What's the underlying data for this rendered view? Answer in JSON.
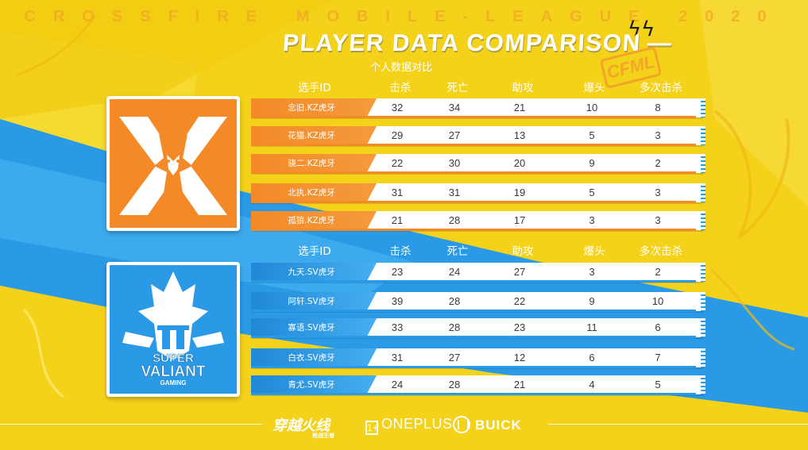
{
  "league_title": "CROSSFIRE MOBILE-LEAGUE 2020",
  "main_title": "PLAYER DATA COMPARISON",
  "main_title_dash": "—",
  "subtitle": "个人数据对比",
  "badge": "CFML",
  "colors": {
    "kz": "#f38a27",
    "sv": "#2a9ae6",
    "background": "#f5d21a"
  },
  "headers": {
    "id": "选手ID",
    "kills": "击杀",
    "deaths": "死亡",
    "assists": "助攻",
    "headshots": "爆头",
    "multikills": "多次击杀"
  },
  "teams": [
    {
      "logo_icon": "kz-dragon-logo",
      "players": [
        {
          "name": "念旧.KZ虎牙",
          "kills": "32",
          "deaths": "34",
          "assists": "21",
          "headshots": "10",
          "multikills": "8"
        },
        {
          "name": "花猫.KZ虎牙",
          "kills": "29",
          "deaths": "27",
          "assists": "13",
          "headshots": "5",
          "multikills": "3"
        },
        {
          "name": "骁二.KZ虎牙",
          "kills": "22",
          "deaths": "30",
          "assists": "20",
          "headshots": "9",
          "multikills": "2"
        },
        {
          "name": "北执.KZ虎牙",
          "kills": "31",
          "deaths": "31",
          "assists": "19",
          "headshots": "5",
          "multikills": "3"
        },
        {
          "name": "孤狼.KZ虎牙",
          "kills": "21",
          "deaths": "28",
          "assists": "17",
          "headshots": "3",
          "multikills": "3"
        }
      ]
    },
    {
      "logo_icon": "super-valiant-gaming-logo",
      "logo_text": {
        "line1": "SUPER",
        "line2": "VALIANT",
        "line3": "GAMING"
      },
      "players": [
        {
          "name": "九天.SV虎牙",
          "kills": "23",
          "deaths": "24",
          "assists": "27",
          "headshots": "3",
          "multikills": "2"
        },
        {
          "name": "阿轩.SV虎牙",
          "kills": "39",
          "deaths": "28",
          "assists": "22",
          "headshots": "9",
          "multikills": "10"
        },
        {
          "name": "寡语.SV虎牙",
          "kills": "33",
          "deaths": "28",
          "assists": "23",
          "headshots": "11",
          "multikills": "6"
        },
        {
          "name": "白衣.SV虎牙",
          "kills": "31",
          "deaths": "27",
          "assists": "12",
          "headshots": "6",
          "multikills": "7"
        },
        {
          "name": "青尤.SV虎牙",
          "kills": "24",
          "deaths": "28",
          "assists": "21",
          "headshots": "4",
          "multikills": "5"
        }
      ]
    }
  ],
  "sponsors": {
    "cf_logo": "穿越火线",
    "cf_sub": "枪战王者",
    "oneplus": "ONEPLUS",
    "oneplus_mark": "1+",
    "buick": "BUICK"
  }
}
